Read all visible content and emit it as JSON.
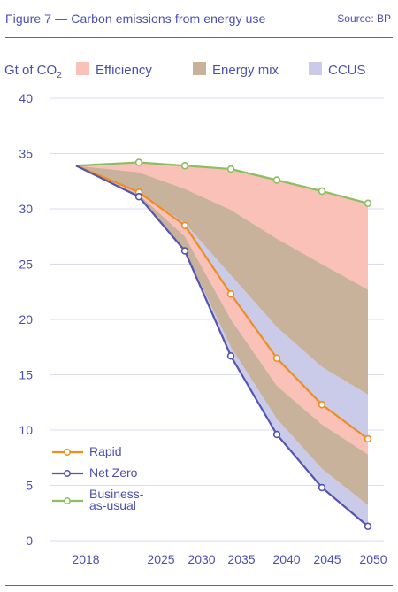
{
  "figure": {
    "title": "Figure 7 — Carbon emissions from energy use",
    "source": "Source: BP"
  },
  "chart_data": {
    "type": "area",
    "ylabel": "Gt of CO",
    "ylabel_sub": "2",
    "ylim": [
      0,
      40
    ],
    "yticks": [
      0,
      5,
      10,
      15,
      20,
      25,
      30,
      35,
      40
    ],
    "x_tick_labels": [
      "2018",
      "2025",
      "2030",
      "2035",
      "2040",
      "2045",
      "2050"
    ],
    "x_ticks": [
      2018,
      2025,
      2030,
      2035,
      2040,
      2045,
      2050
    ],
    "grid": "horizontal",
    "area_legend_placement": "top",
    "area_legend": [
      {
        "name": "Efficiency",
        "color": "#f9c1b8"
      },
      {
        "name": "Energy mix",
        "color": "#c8b29b"
      },
      {
        "name": "CCUS",
        "color": "#c9cbe9"
      }
    ],
    "line_legend_placement": "bottom-left",
    "line_legend": [
      {
        "name": "Rapid",
        "color": "#f28c1c"
      },
      {
        "name": "Net Zero",
        "color": "#5454b4"
      },
      {
        "name": "Business-\nas-usual",
        "color": "#8cbf5f"
      }
    ],
    "lines": [
      {
        "key": "bau",
        "color": "#8cbf5f",
        "x": [
          2018,
          2022,
          2026,
          2030,
          2034,
          2038,
          2042
        ],
        "values": [
          33.9,
          34.2,
          33.9,
          33.6,
          32.6,
          31.6,
          30.5
        ]
      },
      {
        "key": "rapid",
        "color": "#f28c1c",
        "x": [
          2018,
          2022,
          2026,
          2030,
          2034,
          2038,
          2042
        ],
        "values": [
          33.9,
          31.5,
          28.5,
          22.3,
          16.5,
          12.3,
          9.2
        ]
      },
      {
        "key": "netzero",
        "color": "#5454b4",
        "x": [
          2018,
          2022,
          2026,
          2030,
          2034,
          2038,
          2042
        ],
        "values": [
          33.9,
          31.1,
          26.2,
          16.7,
          9.6,
          4.8,
          1.3
        ]
      }
    ],
    "bands": [
      {
        "name": "Efficiency",
        "color": "#f9c1b8",
        "x": [
          2018,
          2022,
          2026,
          2030,
          2034,
          2038,
          2042
        ],
        "upper": [
          33.9,
          34.2,
          33.9,
          33.6,
          32.6,
          31.6,
          30.5
        ],
        "lower": [
          33.9,
          33.3,
          31.8,
          29.9,
          27.3,
          25.0,
          22.7
        ]
      },
      {
        "name": "Energy mix",
        "color": "#c8b29b",
        "x": [
          2018,
          2022,
          2026,
          2030,
          2034,
          2038,
          2042
        ],
        "upper": [
          33.9,
          33.3,
          31.8,
          29.9,
          27.3,
          25.0,
          22.7
        ],
        "lower": [
          33.9,
          31.5,
          28.7,
          24.0,
          19.3,
          15.7,
          13.2
        ]
      },
      {
        "name": "CCUS",
        "color": "#c9cbe9",
        "x": [
          2018,
          2022,
          2026,
          2030,
          2034,
          2038,
          2042
        ],
        "upper": [
          33.9,
          31.5,
          28.7,
          24.0,
          19.3,
          15.7,
          13.2
        ],
        "lower": [
          33.9,
          31.5,
          28.5,
          22.3,
          16.5,
          12.3,
          9.2
        ]
      },
      {
        "name": "Efficiency",
        "color": "#f9c1b8",
        "x": [
          2018,
          2022,
          2026,
          2030,
          2034,
          2038,
          2042
        ],
        "upper": [
          33.9,
          31.5,
          28.5,
          22.3,
          16.5,
          12.3,
          9.2
        ],
        "lower": [
          33.9,
          31.3,
          27.5,
          20.0,
          14.0,
          10.5,
          7.8
        ]
      },
      {
        "name": "Energy mix",
        "color": "#c8b29b",
        "x": [
          2018,
          2022,
          2026,
          2030,
          2034,
          2038,
          2042
        ],
        "upper": [
          33.9,
          31.3,
          27.5,
          20.0,
          14.0,
          10.5,
          7.8
        ],
        "lower": [
          33.9,
          31.1,
          26.2,
          17.5,
          11.0,
          6.5,
          3.2
        ]
      },
      {
        "name": "CCUS",
        "color": "#c9cbe9",
        "x": [
          2018,
          2022,
          2026,
          2030,
          2034,
          2038,
          2042
        ],
        "upper": [
          33.9,
          31.1,
          26.2,
          17.5,
          11.0,
          6.5,
          3.2
        ],
        "lower": [
          33.9,
          31.1,
          26.2,
          16.7,
          9.6,
          4.8,
          1.3
        ]
      }
    ]
  }
}
